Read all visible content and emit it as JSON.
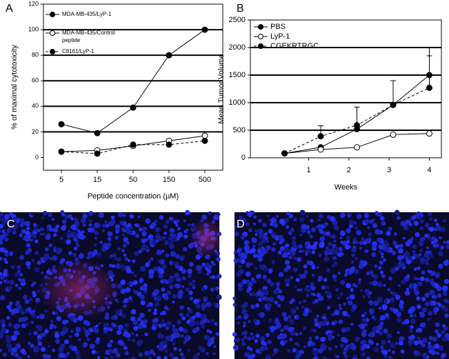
{
  "chart_data": [
    {
      "type": "line",
      "panel": "A",
      "categories": [
        "5",
        "15",
        "50",
        "150",
        "500"
      ],
      "x_label": "Peptide concentration (μM)",
      "y_label": "% of maximal cytotoxicity",
      "ylim": [
        -10,
        120
      ],
      "yticks": [
        0,
        20,
        40,
        60,
        80,
        100,
        120
      ],
      "grid": [
        20,
        40,
        60,
        80,
        100
      ],
      "series": [
        {
          "name": "MDA-MB-435/LyP-1",
          "color": "#000000",
          "marker": "filled",
          "dash": false,
          "values": [
            26,
            19,
            39,
            80,
            100
          ]
        },
        {
          "name": "MDA-MB-435/Control peptide",
          "color": "#000000",
          "marker": "open",
          "dash": false,
          "values": [
            4.5,
            5.5,
            9,
            13,
            17
          ]
        },
        {
          "name": "C8161/LyP-1",
          "color": "#000000",
          "marker": "filled",
          "dash": true,
          "values": [
            4.5,
            3,
            10,
            10,
            13
          ]
        }
      ]
    },
    {
      "type": "line",
      "panel": "B",
      "x": [
        0.4,
        1.3,
        2.2,
        3.1,
        4.0
      ],
      "x_label": "Weeks",
      "y_label": "Mean Tumor Volume",
      "xlim": [
        -0.45,
        4.3
      ],
      "xticks": [
        1,
        2,
        3,
        4
      ],
      "ylim": [
        0,
        2500
      ],
      "yticks": [
        0,
        500,
        1000,
        1500,
        2000,
        2500
      ],
      "grid": [
        500,
        1000,
        1500,
        2000
      ],
      "series": [
        {
          "name": "PBS",
          "color": "#000000",
          "marker": "filled",
          "dash": false,
          "values": [
            80,
            190,
            520,
            960,
            1500
          ],
          "errors": [
            null,
            null,
            null,
            null,
            500
          ]
        },
        {
          "name": "LyP-1",
          "color": "#000000",
          "marker": "open",
          "dash": false,
          "values": [
            80,
            150,
            190,
            420,
            440
          ],
          "errors": [
            null,
            null,
            null,
            null,
            null
          ]
        },
        {
          "name": "CGEKRTRGC",
          "color": "#000000",
          "marker": "filled",
          "dash": true,
          "values": [
            80,
            390,
            590,
            960,
            1270
          ],
          "errors": [
            null,
            190,
            330,
            440,
            580
          ]
        }
      ]
    }
  ],
  "images": [
    {
      "label": "C"
    },
    {
      "label": "D"
    }
  ]
}
